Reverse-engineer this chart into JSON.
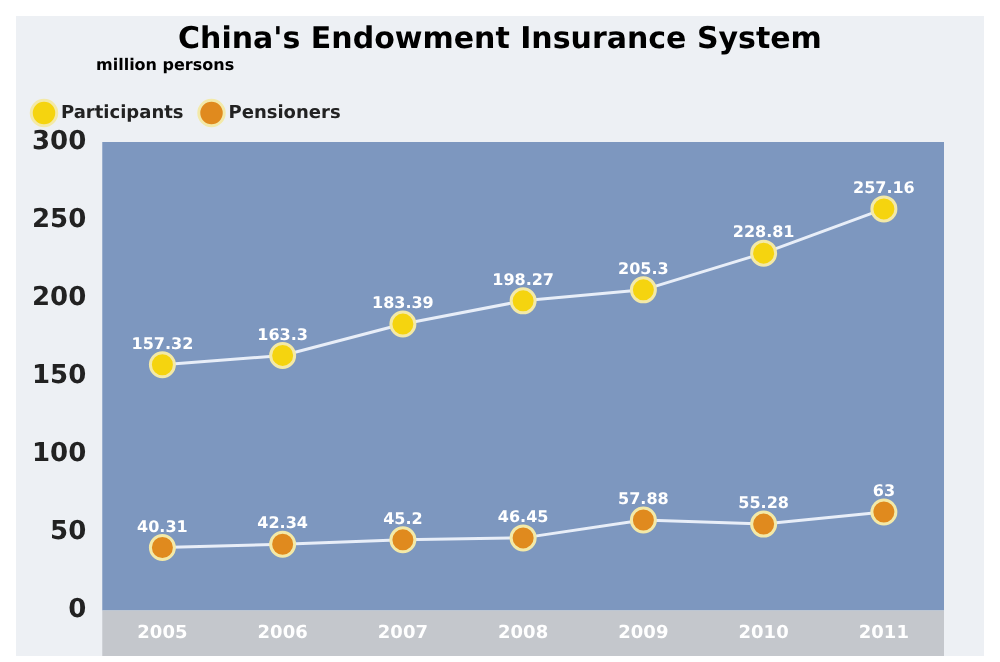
{
  "chart_data": {
    "type": "line",
    "title": "China's Endowment Insurance System",
    "ylabel": "million persons",
    "categories": [
      "2005",
      "2006",
      "2007",
      "2008",
      "2009",
      "2010",
      "2011"
    ],
    "series": [
      {
        "name": "Participants",
        "color": "#f5d40f",
        "values": [
          157.32,
          163.3,
          183.39,
          198.27,
          205.3,
          228.81,
          257.16
        ]
      },
      {
        "name": "Pensioners",
        "color": "#e08a1e",
        "values": [
          40.31,
          42.34,
          45.2,
          46.45,
          57.88,
          55.28,
          63
        ]
      }
    ],
    "ylim": [
      0,
      300
    ],
    "yticks": [
      0,
      50,
      100,
      150,
      200,
      250,
      300
    ],
    "grid": false,
    "legend": "top left",
    "marker": "circle",
    "line_style": "solid",
    "data_labels": true
  }
}
